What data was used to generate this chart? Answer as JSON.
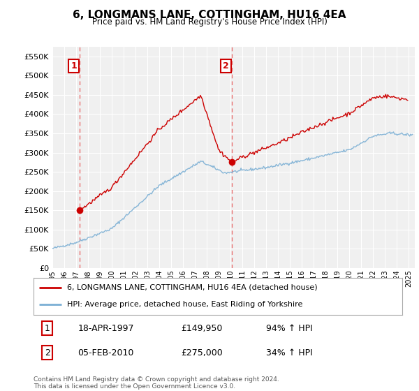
{
  "title": "6, LONGMANS LANE, COTTINGHAM, HU16 4EA",
  "subtitle": "Price paid vs. HM Land Registry's House Price Index (HPI)",
  "sale1_date": "18-APR-1997",
  "sale1_price": 149950,
  "sale1_hpi_pct": "94%",
  "sale2_date": "05-FEB-2010",
  "sale2_price": 275000,
  "sale2_hpi_pct": "34%",
  "legend1": "6, LONGMANS LANE, COTTINGHAM, HU16 4EA (detached house)",
  "legend2": "HPI: Average price, detached house, East Riding of Yorkshire",
  "footer": "Contains HM Land Registry data © Crown copyright and database right 2024.\nThis data is licensed under the Open Government Licence v3.0.",
  "property_color": "#cc0000",
  "hpi_color": "#7bafd4",
  "vline_color": "#e87070",
  "dot_color": "#cc0000",
  "background_color": "#ffffff",
  "plot_bg_color": "#f0f0f0",
  "grid_color": "#ffffff",
  "ylim": [
    0,
    575000
  ],
  "yticks": [
    0,
    50000,
    100000,
    150000,
    200000,
    250000,
    300000,
    350000,
    400000,
    450000,
    500000,
    550000
  ],
  "sale1_x": 1997.3,
  "sale2_x": 2010.1,
  "xmin": 1995.0,
  "xmax": 2025.5
}
